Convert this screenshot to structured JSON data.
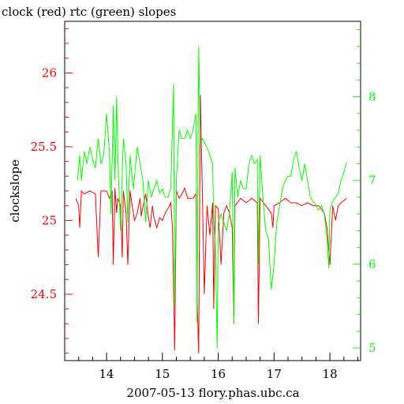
{
  "chart_data": {
    "type": "line",
    "title": "clock (red) rtc (green) slopes",
    "xlabel": "2007-05-13 flory.phas.ubc.ca",
    "ylabel": "clockslope",
    "xlim": [
      13.25,
      18.55
    ],
    "ylim_left": [
      24.05,
      26.35
    ],
    "ylim_right": [
      4.85,
      8.9
    ],
    "x_ticks": [
      14,
      15,
      16,
      17,
      18
    ],
    "y_ticks_left": [
      24.5,
      25,
      25.5,
      26
    ],
    "y_ticks_right": [
      5,
      6,
      7,
      8
    ],
    "colors": {
      "clock": "#ff0000",
      "rtc": "#00ff00",
      "axes": "#000000"
    },
    "series": [
      {
        "color": "#ff0000",
        "axis": "left",
        "points": [
          [
            13.45,
            25.15
          ],
          [
            13.5,
            25.1
          ],
          [
            13.52,
            24.95
          ],
          [
            13.55,
            25.2
          ],
          [
            13.6,
            25.18
          ],
          [
            13.7,
            25.2
          ],
          [
            13.8,
            25.18
          ],
          [
            13.85,
            24.75
          ],
          [
            13.9,
            25.2
          ],
          [
            14.0,
            25.2
          ],
          [
            14.05,
            25.15
          ],
          [
            14.1,
            25.2
          ],
          [
            14.12,
            24.7
          ],
          [
            14.15,
            25.22
          ],
          [
            14.18,
            25.05
          ],
          [
            14.2,
            25.15
          ],
          [
            14.25,
            25.1
          ],
          [
            14.28,
            24.75
          ],
          [
            14.3,
            25.2
          ],
          [
            14.35,
            25.05
          ],
          [
            14.38,
            24.7
          ],
          [
            14.42,
            25.2
          ],
          [
            14.5,
            25.0
          ],
          [
            14.55,
            25.05
          ],
          [
            14.6,
            25.15
          ],
          [
            14.62,
            25.03
          ],
          [
            14.7,
            25.18
          ],
          [
            14.75,
            25.02
          ],
          [
            14.78,
            24.95
          ],
          [
            14.82,
            25.1
          ],
          [
            14.85,
            25.02
          ],
          [
            14.9,
            24.95
          ],
          [
            14.95,
            25.02
          ],
          [
            15.0,
            25.0
          ],
          [
            15.05,
            25.05
          ],
          [
            15.1,
            25.08
          ],
          [
            15.15,
            25.12
          ],
          [
            15.18,
            24.95
          ],
          [
            15.22,
            24.12
          ],
          [
            15.25,
            25.2
          ],
          [
            15.3,
            25.15
          ],
          [
            15.35,
            25.18
          ],
          [
            15.4,
            25.22
          ],
          [
            15.45,
            25.15
          ],
          [
            15.5,
            25.15
          ],
          [
            15.55,
            25.15
          ],
          [
            15.6,
            25.18
          ],
          [
            15.62,
            24.5
          ],
          [
            15.65,
            24.1
          ],
          [
            15.68,
            25.85
          ],
          [
            15.72,
            25.1
          ],
          [
            15.75,
            24.5
          ],
          [
            15.8,
            25.1
          ],
          [
            15.85,
            24.9
          ],
          [
            15.9,
            25.12
          ],
          [
            15.92,
            24.4
          ],
          [
            15.95,
            25.1
          ],
          [
            16.0,
            25.08
          ],
          [
            16.05,
            24.7
          ],
          [
            16.1,
            25.05
          ],
          [
            16.15,
            25.1
          ],
          [
            16.2,
            25.05
          ],
          [
            16.25,
            24.95
          ],
          [
            16.28,
            24.3
          ],
          [
            16.3,
            25.1
          ],
          [
            16.4,
            25.15
          ],
          [
            16.5,
            25.12
          ],
          [
            16.6,
            25.15
          ],
          [
            16.7,
            25.12
          ],
          [
            16.72,
            24.3
          ],
          [
            16.75,
            25.15
          ],
          [
            16.85,
            25.1
          ],
          [
            16.95,
            25.05
          ],
          [
            16.98,
            24.95
          ],
          [
            17.0,
            25.1
          ],
          [
            17.1,
            25.12
          ],
          [
            17.2,
            25.15
          ],
          [
            17.3,
            25.12
          ],
          [
            17.4,
            25.12
          ],
          [
            17.5,
            25.1
          ],
          [
            17.6,
            25.12
          ],
          [
            17.7,
            25.1
          ],
          [
            17.8,
            25.1
          ],
          [
            17.9,
            25.05
          ],
          [
            17.95,
            24.95
          ],
          [
            18.0,
            24.7
          ],
          [
            18.05,
            25.1
          ],
          [
            18.1,
            25.0
          ],
          [
            18.15,
            25.1
          ],
          [
            18.2,
            25.12
          ],
          [
            18.3,
            25.15
          ]
        ]
      },
      {
        "color": "#00ff00",
        "axis": "right",
        "points": [
          [
            13.48,
            7.0
          ],
          [
            13.52,
            7.3
          ],
          [
            13.55,
            7.0
          ],
          [
            13.6,
            7.35
          ],
          [
            13.65,
            7.2
          ],
          [
            13.7,
            7.4
          ],
          [
            13.75,
            7.25
          ],
          [
            13.8,
            7.15
          ],
          [
            13.85,
            7.5
          ],
          [
            13.9,
            7.2
          ],
          [
            13.95,
            7.3
          ],
          [
            14.0,
            7.8
          ],
          [
            14.05,
            7.35
          ],
          [
            14.08,
            6.6
          ],
          [
            14.12,
            7.9
          ],
          [
            14.15,
            7.0
          ],
          [
            14.18,
            8.0
          ],
          [
            14.2,
            7.3
          ],
          [
            14.25,
            6.4
          ],
          [
            14.3,
            7.5
          ],
          [
            14.35,
            7.2
          ],
          [
            14.38,
            6.5
          ],
          [
            14.42,
            7.3
          ],
          [
            14.48,
            6.9
          ],
          [
            14.55,
            7.4
          ],
          [
            14.6,
            7.2
          ],
          [
            14.65,
            7.0
          ],
          [
            14.7,
            6.5
          ],
          [
            14.75,
            7.0
          ],
          [
            14.8,
            6.8
          ],
          [
            14.85,
            6.9
          ],
          [
            14.9,
            7.0
          ],
          [
            14.95,
            6.85
          ],
          [
            15.0,
            6.9
          ],
          [
            15.05,
            6.8
          ],
          [
            15.1,
            6.8
          ],
          [
            15.15,
            6.9
          ],
          [
            15.2,
            8.15
          ],
          [
            15.22,
            5.5
          ],
          [
            15.25,
            7.0
          ],
          [
            15.3,
            7.6
          ],
          [
            15.35,
            7.5
          ],
          [
            15.4,
            7.5
          ],
          [
            15.45,
            7.6
          ],
          [
            15.5,
            7.5
          ],
          [
            15.55,
            7.6
          ],
          [
            15.6,
            7.8
          ],
          [
            15.62,
            5.3
          ],
          [
            15.65,
            8.6
          ],
          [
            15.68,
            7.45
          ],
          [
            15.72,
            7.5
          ],
          [
            15.75,
            7.45
          ],
          [
            15.8,
            7.4
          ],
          [
            15.85,
            7.3
          ],
          [
            15.9,
            7.2
          ],
          [
            15.92,
            6.5
          ],
          [
            15.95,
            6.2
          ],
          [
            15.98,
            5.0
          ],
          [
            16.0,
            6.5
          ],
          [
            16.05,
            6.6
          ],
          [
            16.1,
            6.5
          ],
          [
            16.15,
            6.4
          ],
          [
            16.2,
            6.6
          ],
          [
            16.25,
            7.1
          ],
          [
            16.28,
            5.3
          ],
          [
            16.3,
            7.15
          ],
          [
            16.35,
            6.8
          ],
          [
            16.4,
            7.0
          ],
          [
            16.45,
            6.9
          ],
          [
            16.5,
            6.9
          ],
          [
            16.55,
            7.2
          ],
          [
            16.6,
            7.3
          ],
          [
            16.65,
            7.2
          ],
          [
            16.7,
            7.25
          ],
          [
            16.72,
            6.0
          ],
          [
            16.75,
            7.3
          ],
          [
            16.8,
            6.8
          ],
          [
            16.85,
            6.4
          ],
          [
            16.9,
            6.3
          ],
          [
            16.95,
            5.7
          ],
          [
            17.0,
            6.0
          ],
          [
            17.05,
            6.5
          ],
          [
            17.1,
            6.7
          ],
          [
            17.15,
            6.9
          ],
          [
            17.2,
            7.0
          ],
          [
            17.25,
            7.05
          ],
          [
            17.3,
            7.05
          ],
          [
            17.35,
            7.25
          ],
          [
            17.4,
            7.35
          ],
          [
            17.45,
            7.15
          ],
          [
            17.5,
            7.0
          ],
          [
            17.55,
            7.2
          ],
          [
            17.6,
            7.0
          ],
          [
            17.65,
            6.8
          ],
          [
            17.7,
            6.75
          ],
          [
            17.75,
            6.7
          ],
          [
            17.8,
            6.65
          ],
          [
            17.85,
            6.7
          ],
          [
            17.9,
            6.6
          ],
          [
            17.95,
            6.3
          ],
          [
            17.98,
            5.95
          ],
          [
            18.0,
            6.65
          ],
          [
            18.05,
            6.75
          ],
          [
            18.1,
            6.8
          ],
          [
            18.15,
            6.85
          ],
          [
            18.2,
            7.0
          ],
          [
            18.25,
            7.1
          ],
          [
            18.3,
            7.22
          ]
        ]
      }
    ]
  }
}
